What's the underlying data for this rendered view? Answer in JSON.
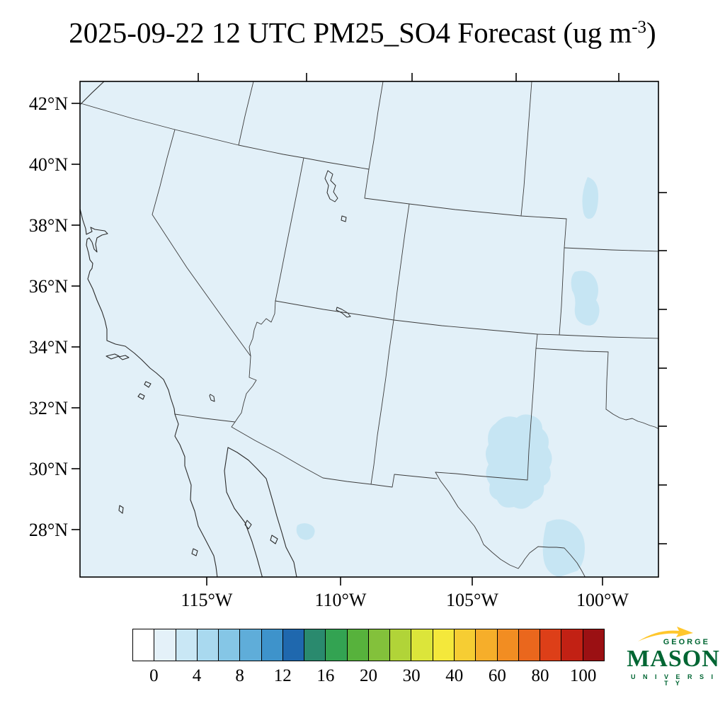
{
  "title": {
    "main": "2025-09-22 12 UTC PM25_SO4 Forecast (ug m",
    "superscript": "-3",
    "suffix": ")"
  },
  "axes": {
    "lat_labels": [
      "42°N",
      "40°N",
      "38°N",
      "36°N",
      "34°N",
      "32°N",
      "30°N",
      "28°N"
    ],
    "lon_labels": [
      "115°W",
      "110°W",
      "105°W",
      "100°W"
    ]
  },
  "colorbar": {
    "tick_labels": [
      "0",
      "4",
      "8",
      "12",
      "16",
      "20",
      "30",
      "40",
      "60",
      "80",
      "100"
    ],
    "colors": [
      "#ffffff",
      "#e4f1f9",
      "#c9e7f5",
      "#a9d9ef",
      "#85c6e6",
      "#5fadd9",
      "#3e93cb",
      "#1f68ae",
      "#2a8a6e",
      "#33a352",
      "#57b23c",
      "#83c13b",
      "#b1d438",
      "#dce53a",
      "#f4e83b",
      "#f6cd33",
      "#f6ae2a",
      "#f28d22",
      "#ea671d",
      "#dd3f18",
      "#c22114",
      "#9b1013"
    ]
  },
  "chart_data": {
    "type": "heatmap",
    "title": "2025-09-22 12 UTC PM25_SO4 Forecast (ug m-3)",
    "units": "ug m-3",
    "variable": "PM25_SO4",
    "forecast_time": "2025-09-22 12 UTC",
    "colorbar_tick_labels": [
      0,
      4,
      8,
      12,
      16,
      20,
      30,
      40,
      60,
      80,
      100
    ],
    "colorbar_levels": [
      0,
      2,
      4,
      6,
      8,
      10,
      12,
      14,
      16,
      18,
      20,
      25,
      30,
      35,
      40,
      50,
      60,
      70,
      80,
      90,
      100
    ],
    "x_tick_labels": [
      "115°W",
      "110°W",
      "105°W",
      "100°W"
    ],
    "y_tick_labels": [
      "42°N",
      "40°N",
      "38°N",
      "36°N",
      "34°N",
      "32°N",
      "30°N",
      "28°N"
    ],
    "region": "Southwestern United States and northern Mexico (Lambert conformal map)",
    "field_summary": "Sulfate concentrations near 0-1 ug m-3 over nearly the whole domain; slightly elevated 1-2 ug m-3 patches over west and south Texas and near the eastern edge of the map.",
    "legend_position": "bottom",
    "grid": false
  },
  "logo": {
    "line1": "GEORGE",
    "line2": "MASON",
    "line3": "U N I V E R S I T Y"
  },
  "theme": {
    "map-bg": "#e2f0f8",
    "patch": "#c6e5f3",
    "border-color": "#3c3c3c",
    "coast-color": "#2b2b2b",
    "logo-green": "#006633",
    "logo-gold": "#ffc72c"
  }
}
